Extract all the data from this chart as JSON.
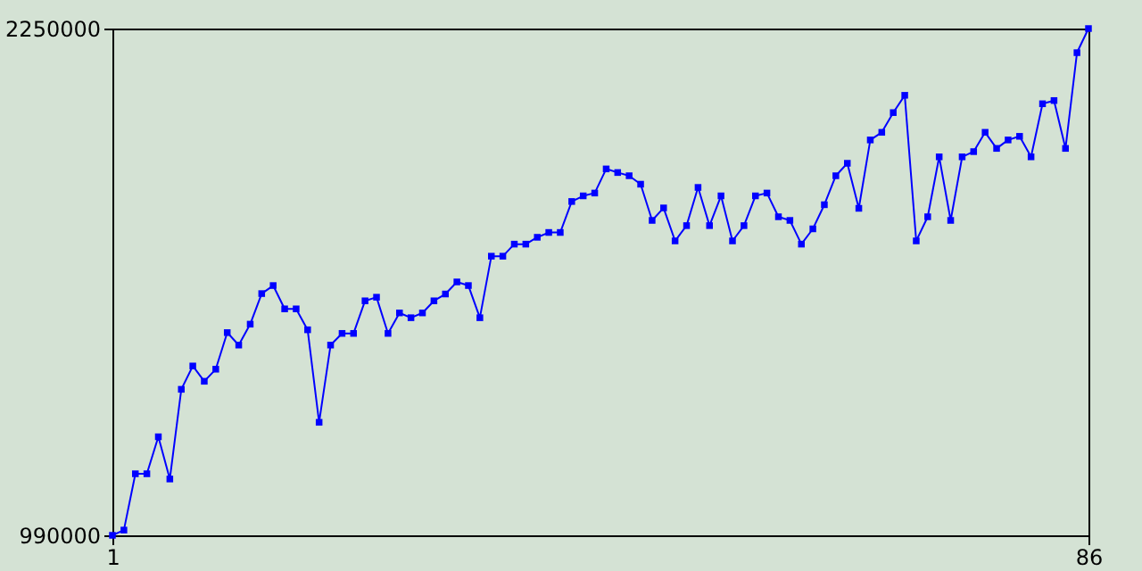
{
  "chart_data": {
    "type": "line",
    "x": [
      1,
      2,
      3,
      4,
      5,
      6,
      7,
      8,
      9,
      10,
      11,
      12,
      13,
      14,
      15,
      16,
      17,
      18,
      19,
      20,
      21,
      22,
      23,
      24,
      25,
      26,
      27,
      28,
      29,
      30,
      31,
      32,
      33,
      34,
      35,
      36,
      37,
      38,
      39,
      40,
      41,
      42,
      43,
      44,
      45,
      46,
      47,
      48,
      49,
      50,
      51,
      52,
      53,
      54,
      55,
      56,
      57,
      58,
      59,
      60,
      61,
      62,
      63,
      64,
      65,
      66,
      67,
      68,
      69,
      70,
      71,
      72,
      73,
      74,
      75,
      76,
      77,
      78,
      79,
      80,
      81,
      82,
      83,
      84,
      85,
      86
    ],
    "series": [
      {
        "color": "#0000ff",
        "values": [
          990000,
          1003000,
          1143000,
          1143000,
          1235000,
          1130000,
          1353000,
          1411000,
          1373000,
          1403000,
          1494000,
          1463000,
          1515000,
          1591000,
          1611000,
          1553000,
          1553000,
          1501000,
          1271000,
          1463000,
          1492000,
          1492000,
          1573000,
          1582000,
          1492000,
          1543000,
          1531000,
          1543000,
          1573000,
          1590000,
          1620000,
          1611000,
          1531000,
          1684000,
          1684000,
          1714000,
          1714000,
          1731000,
          1743000,
          1743000,
          1820000,
          1834000,
          1841000,
          1901000,
          1892000,
          1884000,
          1863000,
          1773000,
          1804000,
          1722000,
          1760000,
          1855000,
          1760000,
          1834000,
          1722000,
          1760000,
          1834000,
          1841000,
          1782000,
          1773000,
          1714000,
          1752000,
          1812000,
          1884000,
          1915000,
          1803000,
          1973000,
          1992000,
          2041000,
          2084000,
          1722000,
          1782000,
          1931000,
          1773000,
          1931000,
          1944000,
          1992000,
          1952000,
          1973000,
          1982000,
          1931000,
          2063000,
          2071000,
          1952000,
          2190000,
          2250000
        ]
      }
    ],
    "xlim": [
      1,
      86
    ],
    "xticks": [
      1,
      86
    ],
    "ylim": [
      990000,
      2250000
    ],
    "yticks": [
      990000,
      2250000
    ],
    "grid": false,
    "marker": "square",
    "line_style": "solid"
  }
}
